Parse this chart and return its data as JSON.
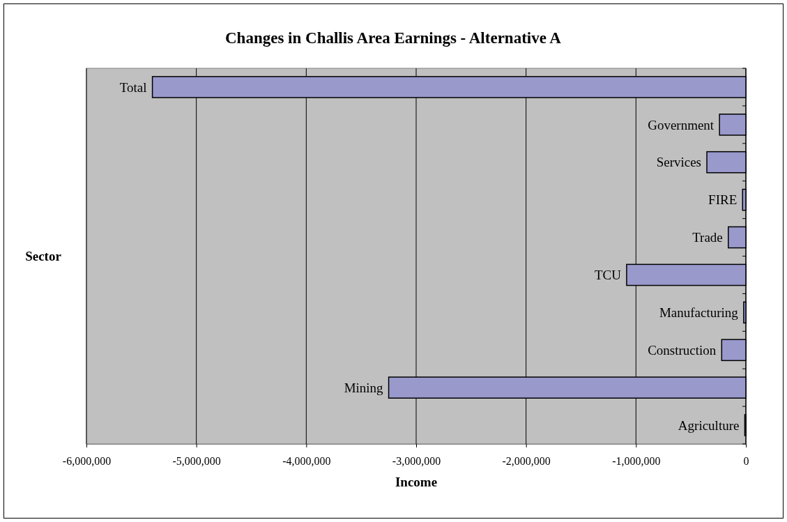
{
  "chart_data": {
    "type": "bar",
    "orientation": "horizontal",
    "title": "Changes in Challis Area Earnings - Alternative A",
    "xlabel": "Income",
    "ylabel": "Sector",
    "categories": [
      "Total",
      "Government",
      "Services",
      "FIRE",
      "Trade",
      "TCU",
      "Manufacturing",
      "Construction",
      "Mining",
      "Agriculture"
    ],
    "values": [
      -5400000,
      -240000,
      -355000,
      -30000,
      -160000,
      -1085000,
      -20000,
      -220000,
      -3250000,
      -10000
    ],
    "color": "#9999cc",
    "xlim": [
      -6000000,
      0
    ],
    "xticks": [
      {
        "value": -6000000,
        "label": "-6,000,000"
      },
      {
        "value": -5000000,
        "label": "-5,000,000"
      },
      {
        "value": -4000000,
        "label": "-4,000,000"
      },
      {
        "value": -3000000,
        "label": "-3,000,000"
      },
      {
        "value": -2000000,
        "label": "-2,000,000"
      },
      {
        "value": -1000000,
        "label": "-1,000,000"
      },
      0
    ],
    "grid": "x"
  }
}
